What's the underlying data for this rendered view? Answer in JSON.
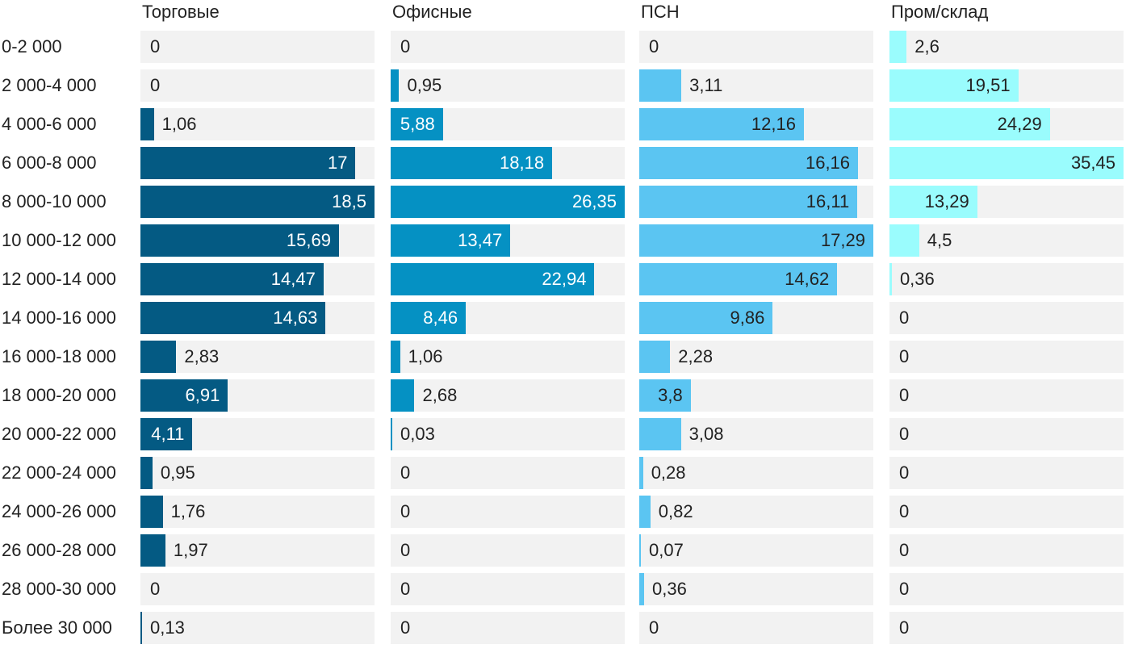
{
  "chart_data": {
    "type": "bar",
    "orientation": "horizontal",
    "layout": "small-multiples",
    "categories": [
      "0-2 000",
      "2 000-4 000",
      "4 000-6 000",
      "6 000-8 000",
      "8 000-10 000",
      "10 000-12 000",
      "12 000-14 000",
      "14 000-16 000",
      "16 000-18 000",
      "18 000-20 000",
      "20 000-22 000",
      "22 000-24 000",
      "24 000-26 000",
      "26 000-28 000",
      "28 000-30 000",
      "Более 30 000"
    ],
    "series": [
      {
        "name": "Торговые",
        "color": "#045a83",
        "labels_dark": false,
        "values": [
          0,
          0,
          1.06,
          17,
          18.5,
          15.69,
          14.47,
          14.63,
          2.83,
          6.91,
          4.11,
          0.95,
          1.76,
          1.97,
          0,
          0.13
        ],
        "value_labels": [
          "0",
          "0",
          "1,06",
          "17",
          "18,5",
          "15,69",
          "14,47",
          "14,63",
          "2,83",
          "6,91",
          "4,11",
          "0,95",
          "1,76",
          "1,97",
          "0",
          "0,13"
        ]
      },
      {
        "name": "Офисные",
        "color": "#0591c3",
        "labels_dark": false,
        "values": [
          0,
          0.95,
          5.88,
          18.18,
          26.35,
          13.47,
          22.94,
          8.46,
          1.06,
          2.68,
          0.03,
          0,
          0,
          0,
          0,
          0
        ],
        "value_labels": [
          "0",
          "0,95",
          "5,88",
          "18,18",
          "26,35",
          "13,47",
          "22,94",
          "8,46",
          "1,06",
          "2,68",
          "0,03",
          "0",
          "0",
          "0",
          "0",
          "0"
        ]
      },
      {
        "name": "ПСН",
        "color": "#5bc5f2",
        "labels_dark": true,
        "values": [
          0,
          3.11,
          12.16,
          16.16,
          16.11,
          17.29,
          14.62,
          9.86,
          2.28,
          3.8,
          3.08,
          0.28,
          0.82,
          0.07,
          0.36,
          0
        ],
        "value_labels": [
          "0",
          "3,11",
          "12,16",
          "16,16",
          "16,11",
          "17,29",
          "14,62",
          "9,86",
          "2,28",
          "3,8",
          "3,08",
          "0,28",
          "0,82",
          "0,07",
          "0,36",
          "0"
        ]
      },
      {
        "name": "Пром/склад",
        "color": "#9afcfd",
        "labels_dark": true,
        "values": [
          2.6,
          19.51,
          24.29,
          35.45,
          13.29,
          4.5,
          0.36,
          0,
          0,
          0,
          0,
          0,
          0,
          0,
          0,
          0
        ],
        "value_labels": [
          "2,6",
          "19,51",
          "24,29",
          "35,45",
          "13,29",
          "4,5",
          "0,36",
          "0",
          "0",
          "0",
          "0",
          "0",
          "0",
          "0",
          "0",
          "0"
        ]
      }
    ],
    "scale": "each panel scaled to its own maximum",
    "grid": false,
    "legend": "none"
  }
}
